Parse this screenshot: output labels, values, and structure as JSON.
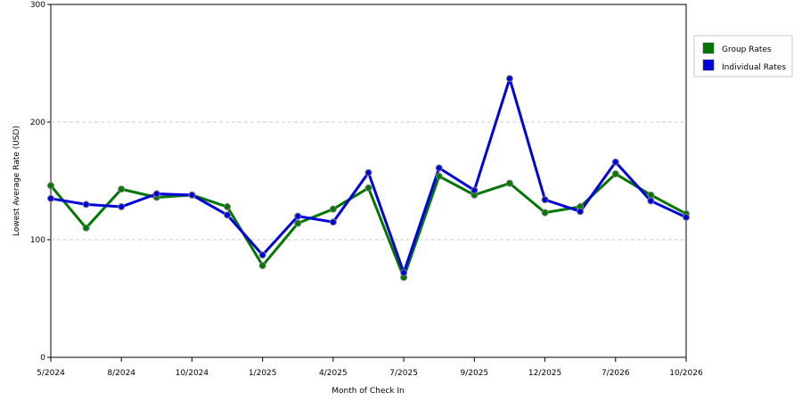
{
  "chart_data": {
    "type": "line",
    "title": "",
    "xlabel": "Month of Check In",
    "ylabel": "Lowest Average Rate (USD)",
    "ylim": [
      0,
      300
    ],
    "yticks": [
      "0",
      "100",
      "200",
      "300"
    ],
    "grid": "horizontal-dashed",
    "legend_position": "right",
    "categories": [
      "5/2024",
      "",
      "8/2024",
      "",
      "10/2024",
      "",
      "1/2025",
      "",
      "4/2025",
      "",
      "7/2025",
      "",
      "9/2025",
      "",
      "12/2025",
      "",
      "7/2026",
      "",
      "10/2026"
    ],
    "series": [
      {
        "name": "Group Rates",
        "color": "#007700",
        "values": [
          146,
          110,
          143,
          136,
          138,
          128,
          78,
          114,
          126,
          144,
          68,
          154,
          138,
          148,
          123,
          128,
          156,
          138,
          122
        ]
      },
      {
        "name": "Individual Rates",
        "color": "#0000dd",
        "values": [
          135,
          130,
          128,
          139,
          138,
          121,
          87,
          120,
          115,
          157,
          72,
          161,
          142,
          237,
          134,
          124,
          166,
          133,
          119
        ]
      }
    ]
  }
}
